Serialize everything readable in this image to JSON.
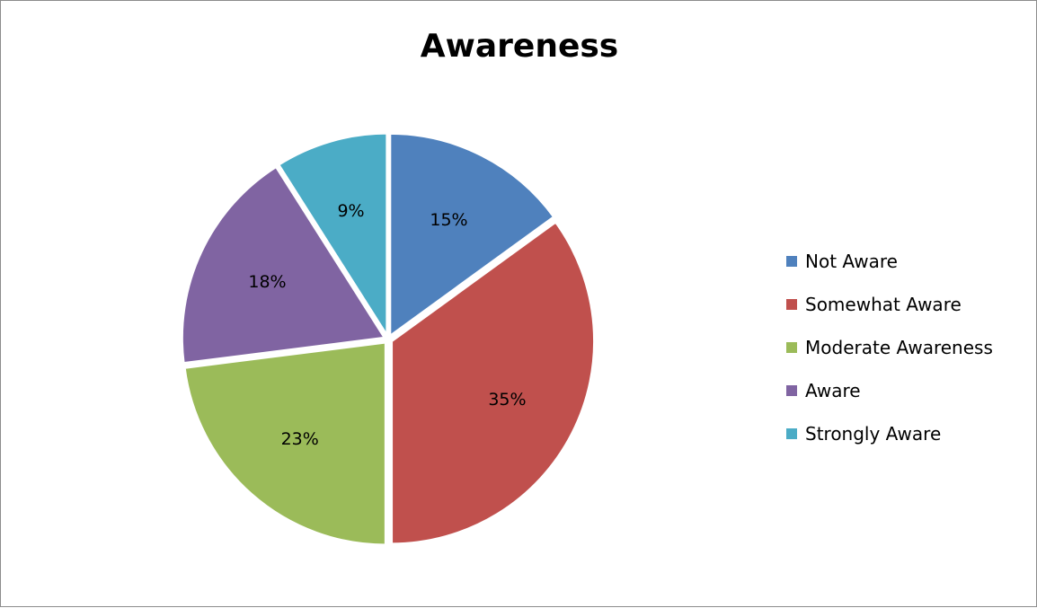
{
  "chart_data": {
    "type": "pie",
    "title": "Awareness",
    "categories": [
      "Not Aware",
      "Somewhat Aware",
      "Moderate Awareness",
      "Aware",
      "Strongly Aware"
    ],
    "values": [
      15,
      35,
      23,
      18,
      9
    ],
    "labels": [
      "15%",
      "35%",
      "23%",
      "18%",
      "9%"
    ],
    "colors": [
      "#4f81bd",
      "#c0504d",
      "#9bbb59",
      "#8064a2",
      "#4bacc6"
    ],
    "legend": "right",
    "exploded": true
  }
}
